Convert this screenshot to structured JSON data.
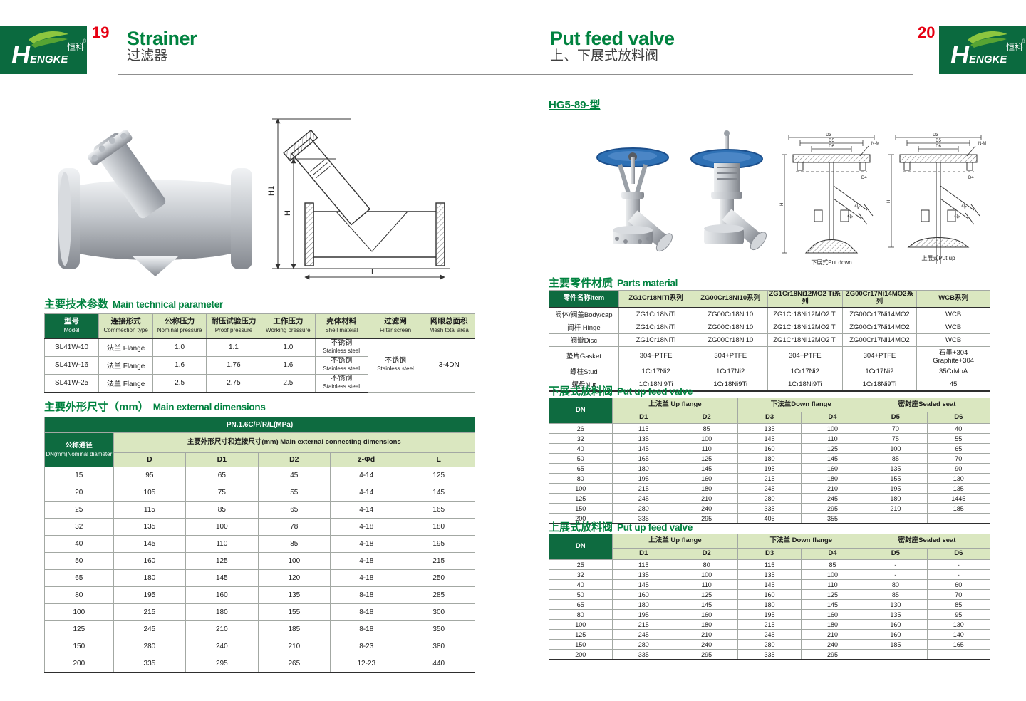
{
  "colors": {
    "brand_green": "#0b6a3f",
    "table_header_green": "#0e6b40",
    "table_light_green": "#dae7c0",
    "title_green": "#00823f",
    "page_number_red": "#e60012",
    "handwheel_blue": "#2f71b5"
  },
  "brand": {
    "h": "H",
    "rest": "ENGKE",
    "cn": "恒科",
    "reg": "®"
  },
  "header": {
    "left_page_number": "19",
    "right_page_number": "20",
    "left_title_en": "Strainer",
    "left_title_cn": "过滤器",
    "right_title_en": "Put feed valve",
    "right_title_cn": "上、下展式放料阀"
  },
  "left": {
    "drawing_labels": {
      "h1": "H1",
      "h": "H",
      "l": "L"
    },
    "tech": {
      "title_cn": "主要技术参数",
      "title_en": "Main technical parameter",
      "headers": [
        {
          "cn": "型号",
          "en": "Model"
        },
        {
          "cn": "连接形式",
          "en": "Commection type"
        },
        {
          "cn": "公称压力",
          "en": "Nominal pressure"
        },
        {
          "cn": "耐压试验压力",
          "en": "Proof pressure"
        },
        {
          "cn": "工作压力",
          "en": "Working pressure"
        },
        {
          "cn": "壳体材料",
          "en": "Shell mateial"
        },
        {
          "cn": "过滤网",
          "en": "Filter screen"
        },
        {
          "cn": "网眼总面积",
          "en": "Mesh total area"
        }
      ],
      "rows": [
        [
          "SL41W-10",
          "法兰 Flange",
          "1.0",
          "1.1",
          "1.0"
        ],
        [
          "SL41W-16",
          "法兰 Flange",
          "1.6",
          "1.76",
          "1.6"
        ],
        [
          "SL41W-25",
          "法兰 Flange",
          "2.5",
          "2.75",
          "2.5"
        ]
      ],
      "shell_cn": "不锈钢",
      "shell_en": "Stainless steel",
      "filter_cn": "不锈钢",
      "filter_en": "Stainless steel",
      "mesh_total": "3-4DN"
    },
    "dims": {
      "title_cn": "主要外形尺寸（mm）",
      "title_en": "Main external dimensions",
      "pn": "PN.1.6C/P/R/L(MPa)",
      "dn_cn": "公称通径",
      "dn_en": "DN(mm)Nominal diameter",
      "group": "主要外形尺寸和连接尺寸(mm) Main external connecting dimensions",
      "cols": [
        "D",
        "D1",
        "D2",
        "z-Φd",
        "L"
      ],
      "rows": [
        [
          "15",
          "95",
          "65",
          "45",
          "4-14",
          "125"
        ],
        [
          "20",
          "105",
          "75",
          "55",
          "4-14",
          "145"
        ],
        [
          "25",
          "115",
          "85",
          "65",
          "4-14",
          "165"
        ],
        [
          "32",
          "135",
          "100",
          "78",
          "4-18",
          "180"
        ],
        [
          "40",
          "145",
          "110",
          "85",
          "4-18",
          "195"
        ],
        [
          "50",
          "160",
          "125",
          "100",
          "4-18",
          "215"
        ],
        [
          "65",
          "180",
          "145",
          "120",
          "4-18",
          "250"
        ],
        [
          "80",
          "195",
          "160",
          "135",
          "8-18",
          "285"
        ],
        [
          "100",
          "215",
          "180",
          "155",
          "8-18",
          "300"
        ],
        [
          "125",
          "245",
          "210",
          "185",
          "8-18",
          "350"
        ],
        [
          "150",
          "280",
          "240",
          "210",
          "8-23",
          "380"
        ],
        [
          "200",
          "335",
          "295",
          "265",
          "12-23",
          "440"
        ]
      ]
    }
  },
  "right": {
    "model": "HG5-89-型",
    "drawings": {
      "d3": "D3",
      "d5": "D5",
      "d6": "D6",
      "nm": "N-M",
      "d4": "D4",
      "h": "H",
      "d1": "D1",
      "d2": "D2",
      "caption_down": "下展式Put down",
      "caption_up": "上展式Put up"
    },
    "parts": {
      "title_cn": "主要零件材质",
      "title_en": "Parts material",
      "item_header": "零件名称Item",
      "series_headers": [
        "ZG1Cr18NiTi系列",
        "ZG00Cr18Ni10系列",
        "ZG1Cr18Ni12MO2 Ti系列",
        "ZG00Cr17Ni14MO2系列",
        "WCB系列"
      ],
      "rows": [
        [
          "阀体/阀盖Body/cap",
          "ZG1Cr18NiTi",
          "ZG00Cr18Ni10",
          "ZG1Cr18Ni12MO2 Ti",
          "ZG00Cr17Ni14MO2",
          "WCB"
        ],
        [
          "阀杆 Hinge",
          "ZG1Cr18NiTi",
          "ZG00Cr18Ni10",
          "ZG1Cr18Ni12MO2 Ti",
          "ZG00Cr17Ni14MO2",
          "WCB"
        ],
        [
          "阀瓣Disc",
          "ZG1Cr18NiTi",
          "ZG00Cr18Ni10",
          "ZG1Cr18Ni12MO2 Ti",
          "ZG00Cr17Ni14MO2",
          "WCB"
        ],
        [
          "垫片Gasket",
          "304+PTFE",
          "304+PTFE",
          "304+PTFE",
          "304+PTFE",
          "石墨+304 Graphite+304"
        ],
        [
          "螺柱Stud",
          "1Cr17Ni2",
          "1Cr17Ni2",
          "1Cr17Ni2",
          "1Cr17Ni2",
          "35CrMoA"
        ],
        [
          "螺母Nut",
          "1Cr18Ni9Ti",
          "1Cr18Ni9Ti",
          "1Cr18Ni9Ti",
          "1Cr18Ni9Ti",
          "45"
        ]
      ]
    },
    "down": {
      "title_cn": "下展式放料阀",
      "title_en": "Put up feed valve",
      "dn": "DN",
      "groups": [
        "上法兰 Up flange",
        "下法兰Down flange",
        "密封座Sealed seat"
      ],
      "cols": [
        "D1",
        "D2",
        "D3",
        "D4",
        "D5",
        "D6"
      ],
      "rows": [
        [
          "26",
          "115",
          "85",
          "135",
          "100",
          "70",
          "40"
        ],
        [
          "32",
          "135",
          "100",
          "145",
          "110",
          "75",
          "55"
        ],
        [
          "40",
          "145",
          "110",
          "160",
          "125",
          "100",
          "65"
        ],
        [
          "50",
          "165",
          "125",
          "180",
          "145",
          "85",
          "70"
        ],
        [
          "65",
          "180",
          "145",
          "195",
          "160",
          "135",
          "90"
        ],
        [
          "80",
          "195",
          "160",
          "215",
          "180",
          "155",
          "130"
        ],
        [
          "100",
          "215",
          "180",
          "245",
          "210",
          "195",
          "135"
        ],
        [
          "125",
          "245",
          "210",
          "280",
          "245",
          "180",
          "1445"
        ],
        [
          "150",
          "280",
          "240",
          "335",
          "295",
          "210",
          "185"
        ],
        [
          "200",
          "335",
          "295",
          "405",
          "355",
          "",
          ""
        ]
      ]
    },
    "up": {
      "title_cn": "上展式放料阀",
      "title_en": "Put up feed valve",
      "dn": "DN",
      "groups": [
        "上法兰 Up flange",
        "下法兰 Down flange",
        "密封座Sealed seat"
      ],
      "cols": [
        "D1",
        "D2",
        "D3",
        "D4",
        "D5",
        "D6"
      ],
      "rows": [
        [
          "25",
          "115",
          "80",
          "115",
          "85",
          "-",
          "-"
        ],
        [
          "32",
          "135",
          "100",
          "135",
          "100",
          "-",
          "-"
        ],
        [
          "40",
          "145",
          "110",
          "145",
          "110",
          "80",
          "60"
        ],
        [
          "50",
          "160",
          "125",
          "160",
          "125",
          "85",
          "70"
        ],
        [
          "65",
          "180",
          "145",
          "180",
          "145",
          "130",
          "85"
        ],
        [
          "80",
          "195",
          "160",
          "195",
          "160",
          "135",
          "95"
        ],
        [
          "100",
          "215",
          "180",
          "215",
          "180",
          "160",
          "130"
        ],
        [
          "125",
          "245",
          "210",
          "245",
          "210",
          "160",
          "140"
        ],
        [
          "150",
          "280",
          "240",
          "280",
          "240",
          "185",
          "165"
        ],
        [
          "200",
          "335",
          "295",
          "335",
          "295",
          "",
          ""
        ]
      ]
    }
  }
}
